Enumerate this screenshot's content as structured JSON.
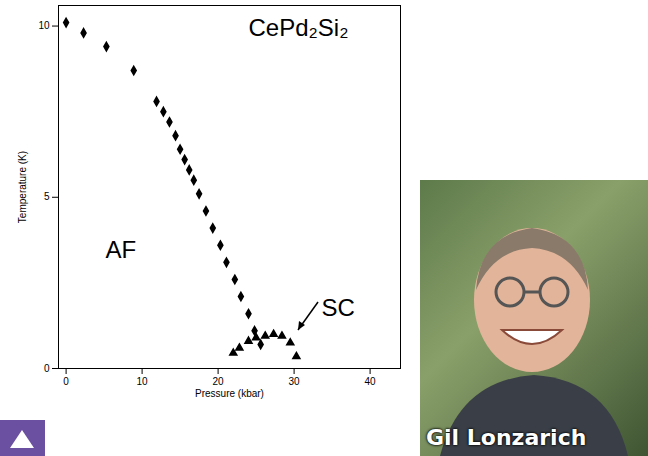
{
  "chart_data": {
    "type": "scatter",
    "title": "CePd₂Si₂",
    "x_label": "Pressure (kbar)",
    "y_label": "Temperature (K)",
    "xlim": [
      -1,
      44
    ],
    "xticks": [
      0,
      10,
      20,
      30,
      40
    ],
    "ylim": [
      0,
      10.6
    ],
    "yticks": [
      0,
      5,
      10
    ],
    "grid": false,
    "series": [
      {
        "name": "AF",
        "color": "#000000",
        "marker": "diamond",
        "x": [
          0,
          2.3,
          5.3,
          8.9,
          11.9,
          12.8,
          13.6,
          14.4,
          15.0,
          15.6,
          16.2,
          16.8,
          17.5,
          18.4,
          19.3,
          20.3,
          21.1,
          22.2,
          23.0,
          24.0,
          24.8,
          25.6
        ],
        "values": [
          10.1,
          9.8,
          9.4,
          8.7,
          7.8,
          7.5,
          7.2,
          6.8,
          6.4,
          6.1,
          5.8,
          5.5,
          5.1,
          4.6,
          4.1,
          3.6,
          3.1,
          2.6,
          2.1,
          1.6,
          1.1,
          0.7
        ]
      },
      {
        "name": "SC",
        "color": "#000000",
        "marker": "triangle",
        "x": [
          22.0,
          22.8,
          24.0,
          25.0,
          26.2,
          27.3,
          28.4,
          29.5,
          30.3
        ],
        "values": [
          0.45,
          0.6,
          0.8,
          0.9,
          0.95,
          1.0,
          0.95,
          0.75,
          0.35
        ]
      }
    ]
  },
  "photo": {
    "caption": "Gil Lonzarich"
  }
}
